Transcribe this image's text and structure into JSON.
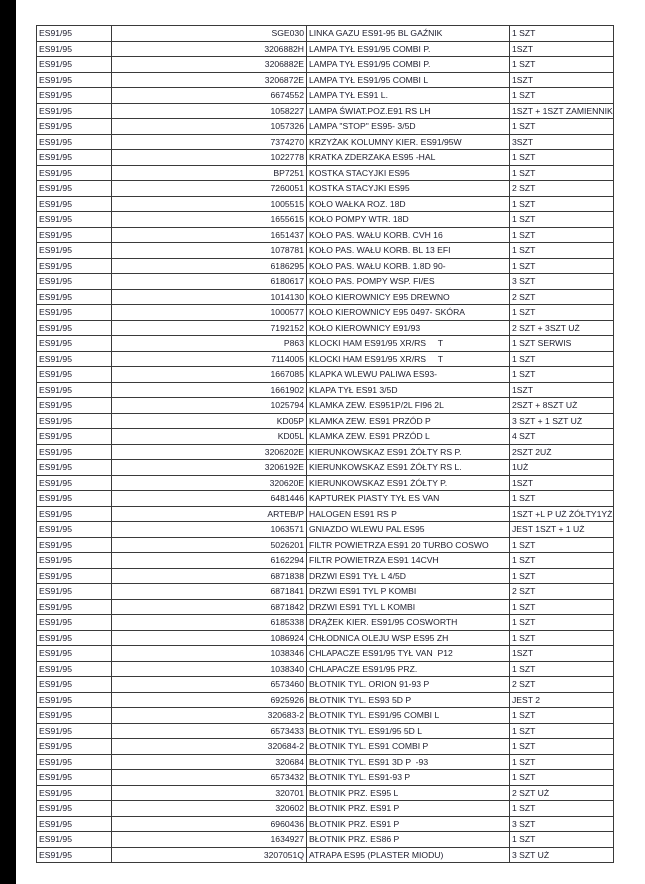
{
  "rows": [
    [
      "ES91/95",
      "SGE030",
      "LINKA GAZU ES91-95 BL GAŹNIK",
      "1 SZT"
    ],
    [
      "ES91/95",
      "3206882H",
      "LAMPA TYŁ ES91/95 COMBI P.",
      "1SZT"
    ],
    [
      "ES91/95",
      "3206882E",
      "LAMPA TYŁ ES91/95 COMBI P.",
      "1 SZT"
    ],
    [
      "ES91/95",
      "3206872E",
      "LAMPA TYŁ ES91/95 COMBI L",
      "1SZT"
    ],
    [
      "ES91/95",
      "6674552",
      "LAMPA TYŁ ES91 L.",
      "1 SZT"
    ],
    [
      "ES91/95",
      "1058227",
      "LAMPA ŚWIAT.POZ.E91 RS LH",
      "1SZT + 1SZT ZAMIENNIK"
    ],
    [
      "ES91/95",
      "1057326",
      "LAMPA \"STOP\" ES95- 3/5D",
      "1 SZT"
    ],
    [
      "ES91/95",
      "7374270",
      "KRZYŻAK KOLUMNY KIER. ES91/95W",
      "3SZT"
    ],
    [
      "ES91/95",
      "1022778",
      "KRATKA ZDERZAKA ES95 -HAL",
      "1 SZT"
    ],
    [
      "ES91/95",
      "BP7251",
      "KOSTKA STACYJKI ES95",
      "1 SZT"
    ],
    [
      "ES91/95",
      "7260051",
      "KOSTKA STACYJKI ES95",
      "2 SZT"
    ],
    [
      "ES91/95",
      "1005515",
      "KOŁO WAŁKA ROZ. 18D",
      "1 SZT"
    ],
    [
      "ES91/95",
      "1655615",
      "KOŁO POMPY WTR. 18D",
      "1 SZT"
    ],
    [
      "ES91/95",
      "1651437",
      "KOŁO PAS. WAŁU KORB. CVH 16",
      "1 SZT"
    ],
    [
      "ES91/95",
      "1078781",
      "KOŁO PAS. WAŁU KORB. BL 13 EFI",
      "1 SZT"
    ],
    [
      "ES91/95",
      "6186295",
      "KOŁO PAS. WAŁU KORB. 1.8D 90-",
      "1 SZT"
    ],
    [
      "ES91/95",
      "6180617",
      "KOŁO PAS. POMPY WSP. FI/ES",
      "3 SZT"
    ],
    [
      "ES91/95",
      "1014130",
      "KOŁO KIEROWNICY E95 DREWNO",
      "2 SZT"
    ],
    [
      "ES91/95",
      "1000577",
      "KOŁO KIEROWNICY E95 0497- SKÓRA",
      "1 SZT"
    ],
    [
      "ES91/95",
      "7192152",
      "KOŁO KIEROWNICY E91/93",
      "2 SZT + 3SZT UŻ"
    ],
    [
      "ES91/95",
      "P863",
      "KLOCKI HAM ES91/95 XR/RS     T",
      "1 SZT SERWIS"
    ],
    [
      "ES91/95",
      "7114005",
      "KLOCKI HAM ES91/95 XR/RS     T",
      "1 SZT"
    ],
    [
      "ES91/95",
      "1667085",
      "KLAPKA WLEWU PALIWA ES93-",
      "1 SZT"
    ],
    [
      "ES91/95",
      "1661902",
      "KLAPA TYŁ ES91 3/5D",
      "1SZT"
    ],
    [
      "ES91/95",
      "1025794",
      "KLAMKA ZEW. ES951P/2L FI96 2L",
      "2SZT + 8SZT UŻ"
    ],
    [
      "ES91/95",
      "KD05P",
      "KLAMKA ZEW. ES91 PRZÓD P",
      "3 SZT + 1 SZT UŻ"
    ],
    [
      "ES91/95",
      "KD05L",
      "KLAMKA ZEW. ES91 PRZÓD L",
      "4 SZT"
    ],
    [
      "ES91/95",
      "3206202E",
      "KIERUNKOWSKAZ ES91 ŻÓŁTY RS P.",
      "2SZT 2UŻ"
    ],
    [
      "ES91/95",
      "3206192E",
      "KIERUNKOWSKAZ ES91 ŻÓŁTY RS L.",
      "1UŻ"
    ],
    [
      "ES91/95",
      "320620E",
      "KIERUNKOWSKAZ ES91 ŻÓŁTY P.",
      "1SZT"
    ],
    [
      "ES91/95",
      "6481446",
      "KAPTUREK PIASTY TYŁ ES VAN",
      "1 SZT"
    ],
    [
      "ES91/95",
      "ARTEB/P",
      "HALOGEN ES91 RS P",
      "1SZT +L P UŻ ŻÓŁTY1YŻ"
    ],
    [
      "ES91/95",
      "1063571",
      "GNIAZDO WLEWU PAL ES95",
      "JEST 1SZT + 1 UŻ"
    ],
    [
      "ES91/95",
      "5026201",
      "FILTR POWIETRZA ES91 20 TURBO COSWO",
      "1 SZT"
    ],
    [
      "ES91/95",
      "6162294",
      "FILTR POWIETRZA ES91 14CVH",
      "1 SZT"
    ],
    [
      "ES91/95",
      "6871838",
      "DRZWI ES91 TYŁ L 4/5D",
      "1 SZT"
    ],
    [
      "ES91/95",
      "6871841",
      "DRZWI ES91 TYL P KOMBI",
      "2 SZT"
    ],
    [
      "ES91/95",
      "6871842",
      "DRZWI ES91 TYL L KOMBI",
      "1 SZT"
    ],
    [
      "ES91/95",
      "6185338",
      "DRĄŻEK KIER. ES91/95 COSWORTH",
      "1 SZT"
    ],
    [
      "ES91/95",
      "1086924",
      "CHŁODNICA OLEJU WSP ES95 ZH",
      "1 SZT"
    ],
    [
      "ES91/95",
      "1038346",
      "CHLAPACZE ES91/95 TYŁ VAN  P12",
      "1SZT"
    ],
    [
      "ES91/95",
      "1038340",
      "CHLAPACZE ES91/95 PRZ.",
      "1 SZT"
    ],
    [
      "ES91/95",
      "6573460",
      "BŁOTNIK TYL. ORION 91-93 P",
      "2 SZT"
    ],
    [
      "ES91/95",
      "6925926",
      "BŁOTNIK TYL. ES93 5D P",
      "JEST 2"
    ],
    [
      "ES91/95",
      "320683-2",
      "BŁOTNIK TYL. ES91/95 COMBI L",
      "1 SZT"
    ],
    [
      "ES91/95",
      "6573433",
      "BŁOTNIK TYL. ES91/95 5D L",
      "1 SZT"
    ],
    [
      "ES91/95",
      "320684-2",
      "BŁOTNIK TYL. ES91 COMBI P",
      "1 SZT"
    ],
    [
      "ES91/95",
      "320684",
      "BŁOTNIK TYL. ES91 3D P  -93",
      "1 SZT"
    ],
    [
      "ES91/95",
      "6573432",
      "BŁOTNIK TYL. ES91-93 P",
      "1 SZT"
    ],
    [
      "ES91/95",
      "320701",
      "BŁOTNIK PRZ. ES95 L",
      "2 SZT UŻ"
    ],
    [
      "ES91/95",
      "320602",
      "BŁOTNIK PRZ. ES91 P",
      "1 SZT"
    ],
    [
      "ES91/95",
      "6960436",
      "BŁOTNIK PRZ. ES91 P",
      "3 SZT"
    ],
    [
      "ES91/95",
      "1634927",
      "BŁOTNIK PRZ. ES86 P",
      "1 SZT"
    ],
    [
      "ES91/95",
      "3207051Q",
      "ATRAPA ES95 (PLASTER MIODU)",
      "3 SZT UŻ"
    ]
  ]
}
